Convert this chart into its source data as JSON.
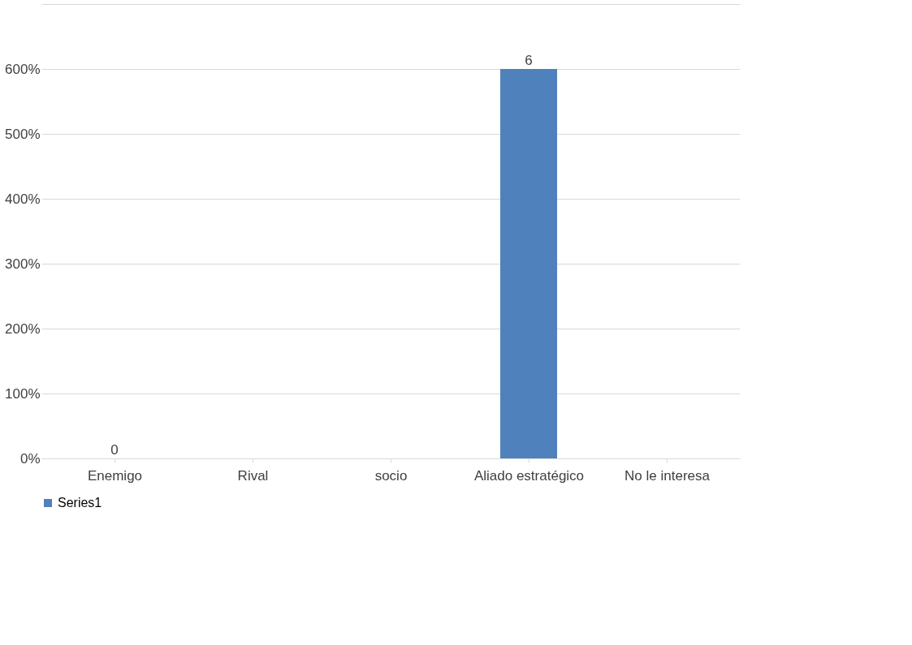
{
  "chart_data": {
    "type": "bar",
    "categories": [
      "Enemigo",
      "Rival",
      "socio",
      "Aliado estratégico",
      "No le interesa"
    ],
    "series": [
      {
        "name": "Series1",
        "color": "#4f81bd",
        "values": [
          0,
          0,
          0,
          6,
          0
        ],
        "value_labels": [
          "0",
          null,
          null,
          "6",
          null
        ]
      }
    ],
    "ylim": [
      0,
      7
    ],
    "yticks": [
      {
        "value": 0,
        "label": "0%"
      },
      {
        "value": 1,
        "label": "100%"
      },
      {
        "value": 2,
        "label": "200%"
      },
      {
        "value": 3,
        "label": "300%"
      },
      {
        "value": 4,
        "label": "400%"
      },
      {
        "value": 5,
        "label": "500%"
      },
      {
        "value": 6,
        "label": "600%"
      },
      {
        "value": 7,
        "label": null
      }
    ],
    "grid": "y",
    "legend": "bottom"
  }
}
